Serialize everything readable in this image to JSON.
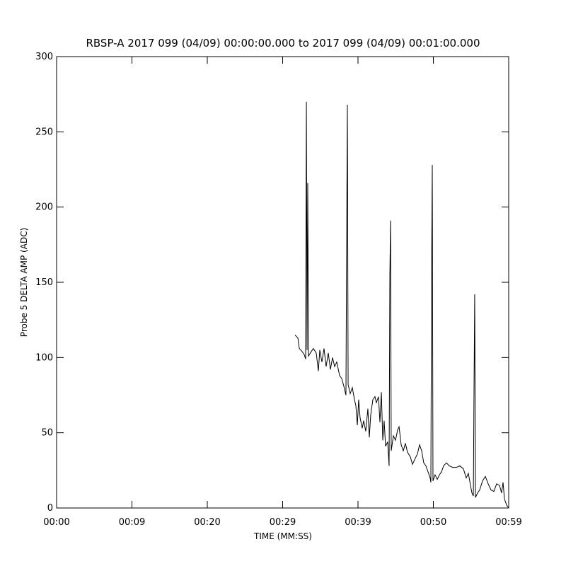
{
  "chart_data": {
    "type": "line",
    "title": "RBSP-A 2017 099 (04/09) 00:00:00.000 to 2017 099 (04/09) 00:01:00.000",
    "x_label": "TIME (MM:SS)",
    "y_label": "Probe 5 DELTA AMP (ADC)",
    "xlim": [
      0,
      60
    ],
    "ylim": [
      0,
      300
    ],
    "xticks": [
      {
        "value": 0,
        "label": "00:00"
      },
      {
        "value": 10,
        "label": "00:09"
      },
      {
        "value": 20,
        "label": "00:20"
      },
      {
        "value": 30,
        "label": "00:29"
      },
      {
        "value": 40,
        "label": "00:39"
      },
      {
        "value": 50,
        "label": "00:50"
      },
      {
        "value": 60,
        "label": "00:59"
      }
    ],
    "yticks": [
      0,
      50,
      100,
      150,
      200,
      250,
      300
    ],
    "grid": false,
    "series": [
      {
        "color": "#000000",
        "x": [
          31.64,
          32.02,
          32.21,
          32.58,
          32.86,
          33.05,
          33.15,
          33.24,
          33.33,
          33.43,
          33.8,
          34.08,
          34.46,
          34.74,
          34.93,
          35.21,
          35.49,
          35.77,
          36.06,
          36.34,
          36.62,
          36.9,
          37.18,
          37.56,
          37.84,
          38.12,
          38.4,
          38.5,
          38.59,
          38.69,
          38.97,
          39.25,
          39.53,
          39.72,
          39.91,
          40.09,
          40.28,
          40.56,
          40.75,
          41.03,
          41.31,
          41.5,
          41.69,
          41.97,
          42.25,
          42.44,
          42.72,
          42.91,
          43.1,
          43.29,
          43.47,
          43.66,
          43.94,
          44.13,
          44.23,
          44.32,
          44.41,
          44.7,
          44.98,
          45.26,
          45.45,
          45.73,
          46.01,
          46.29,
          46.57,
          46.95,
          47.23,
          47.51,
          47.89,
          48.17,
          48.45,
          48.73,
          49.01,
          49.3,
          49.58,
          49.67,
          49.77,
          49.86,
          49.95,
          50.23,
          50.52,
          50.8,
          51.08,
          51.36,
          51.74,
          52.11,
          52.58,
          53.05,
          53.52,
          53.99,
          54.37,
          54.65,
          54.93,
          55.12,
          55.31,
          55.4,
          55.49,
          55.59,
          55.87,
          56.15,
          56.53,
          56.9,
          57.28,
          57.65,
          58.03,
          58.4,
          58.78,
          59.06,
          59.25,
          59.44,
          59.72,
          60.0
        ],
        "values": [
          115,
          113,
          106,
          104,
          102,
          99,
          270,
          105,
          216,
          101,
          104,
          106,
          103,
          91,
          105,
          97,
          106,
          94,
          103,
          92,
          100,
          94,
          97,
          88,
          86,
          81,
          75,
          182,
          268,
          82,
          76,
          80,
          72,
          68,
          55,
          72,
          60,
          53,
          58,
          51,
          66,
          47,
          62,
          72,
          74,
          70,
          74,
          57,
          77,
          45,
          58,
          41,
          44,
          28,
          155,
          191,
          38,
          48,
          45,
          52,
          54,
          42,
          38,
          43,
          37,
          34,
          29,
          32,
          36,
          42,
          38,
          30,
          28,
          24,
          20,
          17,
          157,
          228,
          18,
          22,
          19,
          22,
          24,
          28,
          30,
          28,
          27,
          27,
          28,
          26,
          20,
          23,
          15,
          10,
          8,
          80,
          142,
          7,
          10,
          12,
          18,
          21,
          16,
          12,
          11,
          16,
          15,
          10,
          17,
          6,
          2,
          0
        ]
      }
    ]
  }
}
